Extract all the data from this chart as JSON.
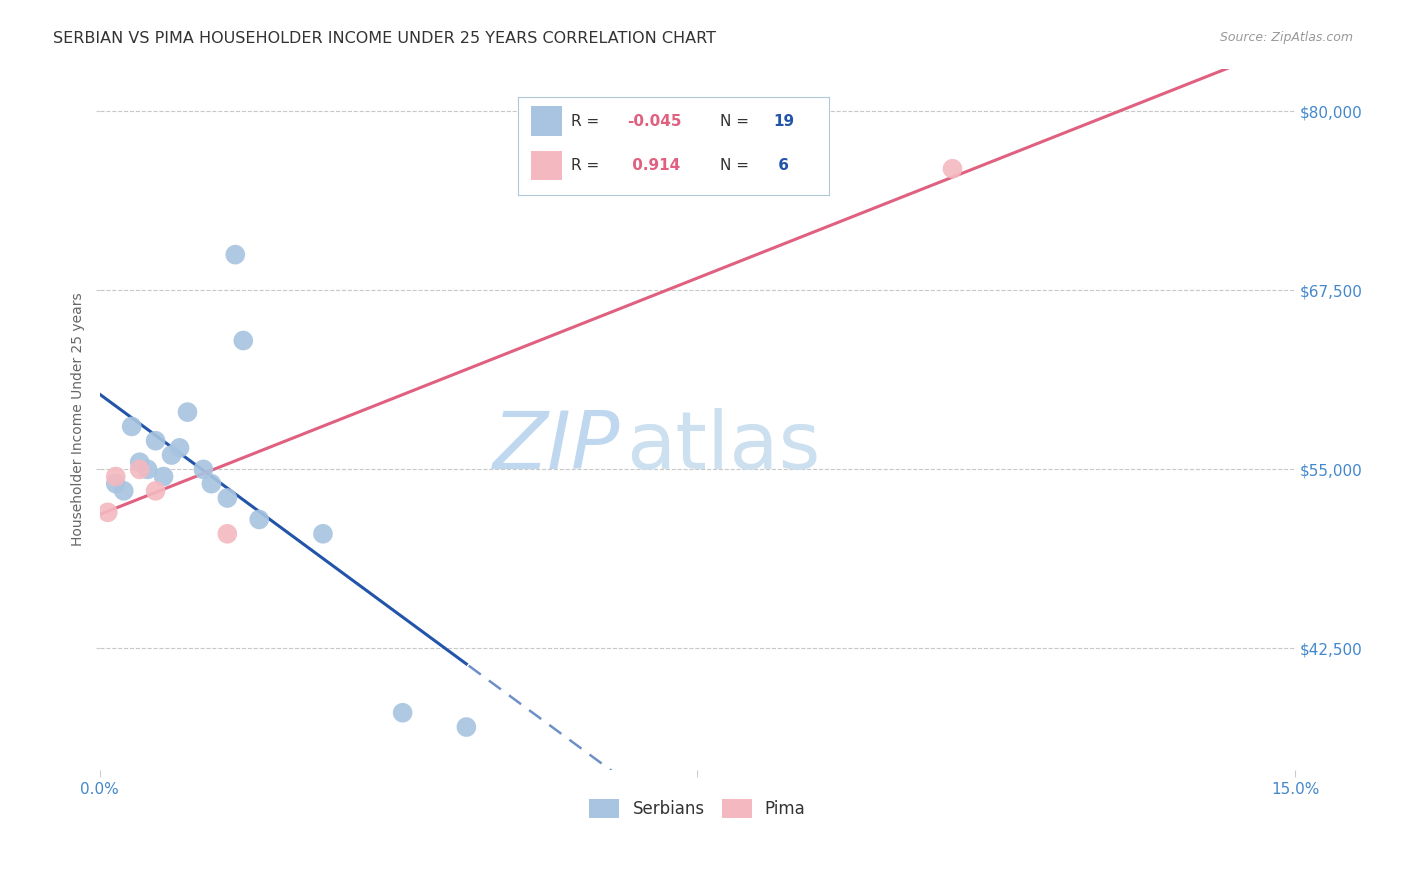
{
  "title": "SERBIAN VS PIMA HOUSEHOLDER INCOME UNDER 25 YEARS CORRELATION CHART",
  "source": "Source: ZipAtlas.com",
  "ylabel": "Householder Income Under 25 years",
  "yticks": [
    42500,
    55000,
    67500,
    80000
  ],
  "ytick_labels": [
    "$42,500",
    "$55,000",
    "$67,500",
    "$80,000"
  ],
  "xlim": [
    0.0,
    0.15
  ],
  "ylim": [
    34000,
    83000
  ],
  "serbians_x": [
    0.002,
    0.003,
    0.004,
    0.005,
    0.006,
    0.007,
    0.008,
    0.009,
    0.01,
    0.011,
    0.013,
    0.014,
    0.016,
    0.017,
    0.018,
    0.02,
    0.028,
    0.038,
    0.046
  ],
  "serbians_y": [
    54000,
    53500,
    58000,
    55500,
    55000,
    57000,
    54500,
    56000,
    56500,
    59000,
    55000,
    54000,
    53000,
    70000,
    64000,
    51500,
    50500,
    38000,
    37000
  ],
  "pima_x": [
    0.001,
    0.002,
    0.005,
    0.007,
    0.016,
    0.107
  ],
  "pima_y": [
    52000,
    54500,
    55000,
    53500,
    50500,
    76000
  ],
  "serbian_color": "#a8c4e0",
  "pima_color": "#f4b8c0",
  "serbian_line_color": "#2255aa",
  "pima_line_color": "#e06080",
  "background_color": "#ffffff",
  "grid_color": "#c8c8c8",
  "tick_label_color": "#4488cc",
  "watermark_color": "#ccdff0",
  "r_serbian": -0.045,
  "r_pima": 0.914,
  "n_serbian": 19,
  "n_pima": 6,
  "solid_cutoff_serbian": 0.046
}
